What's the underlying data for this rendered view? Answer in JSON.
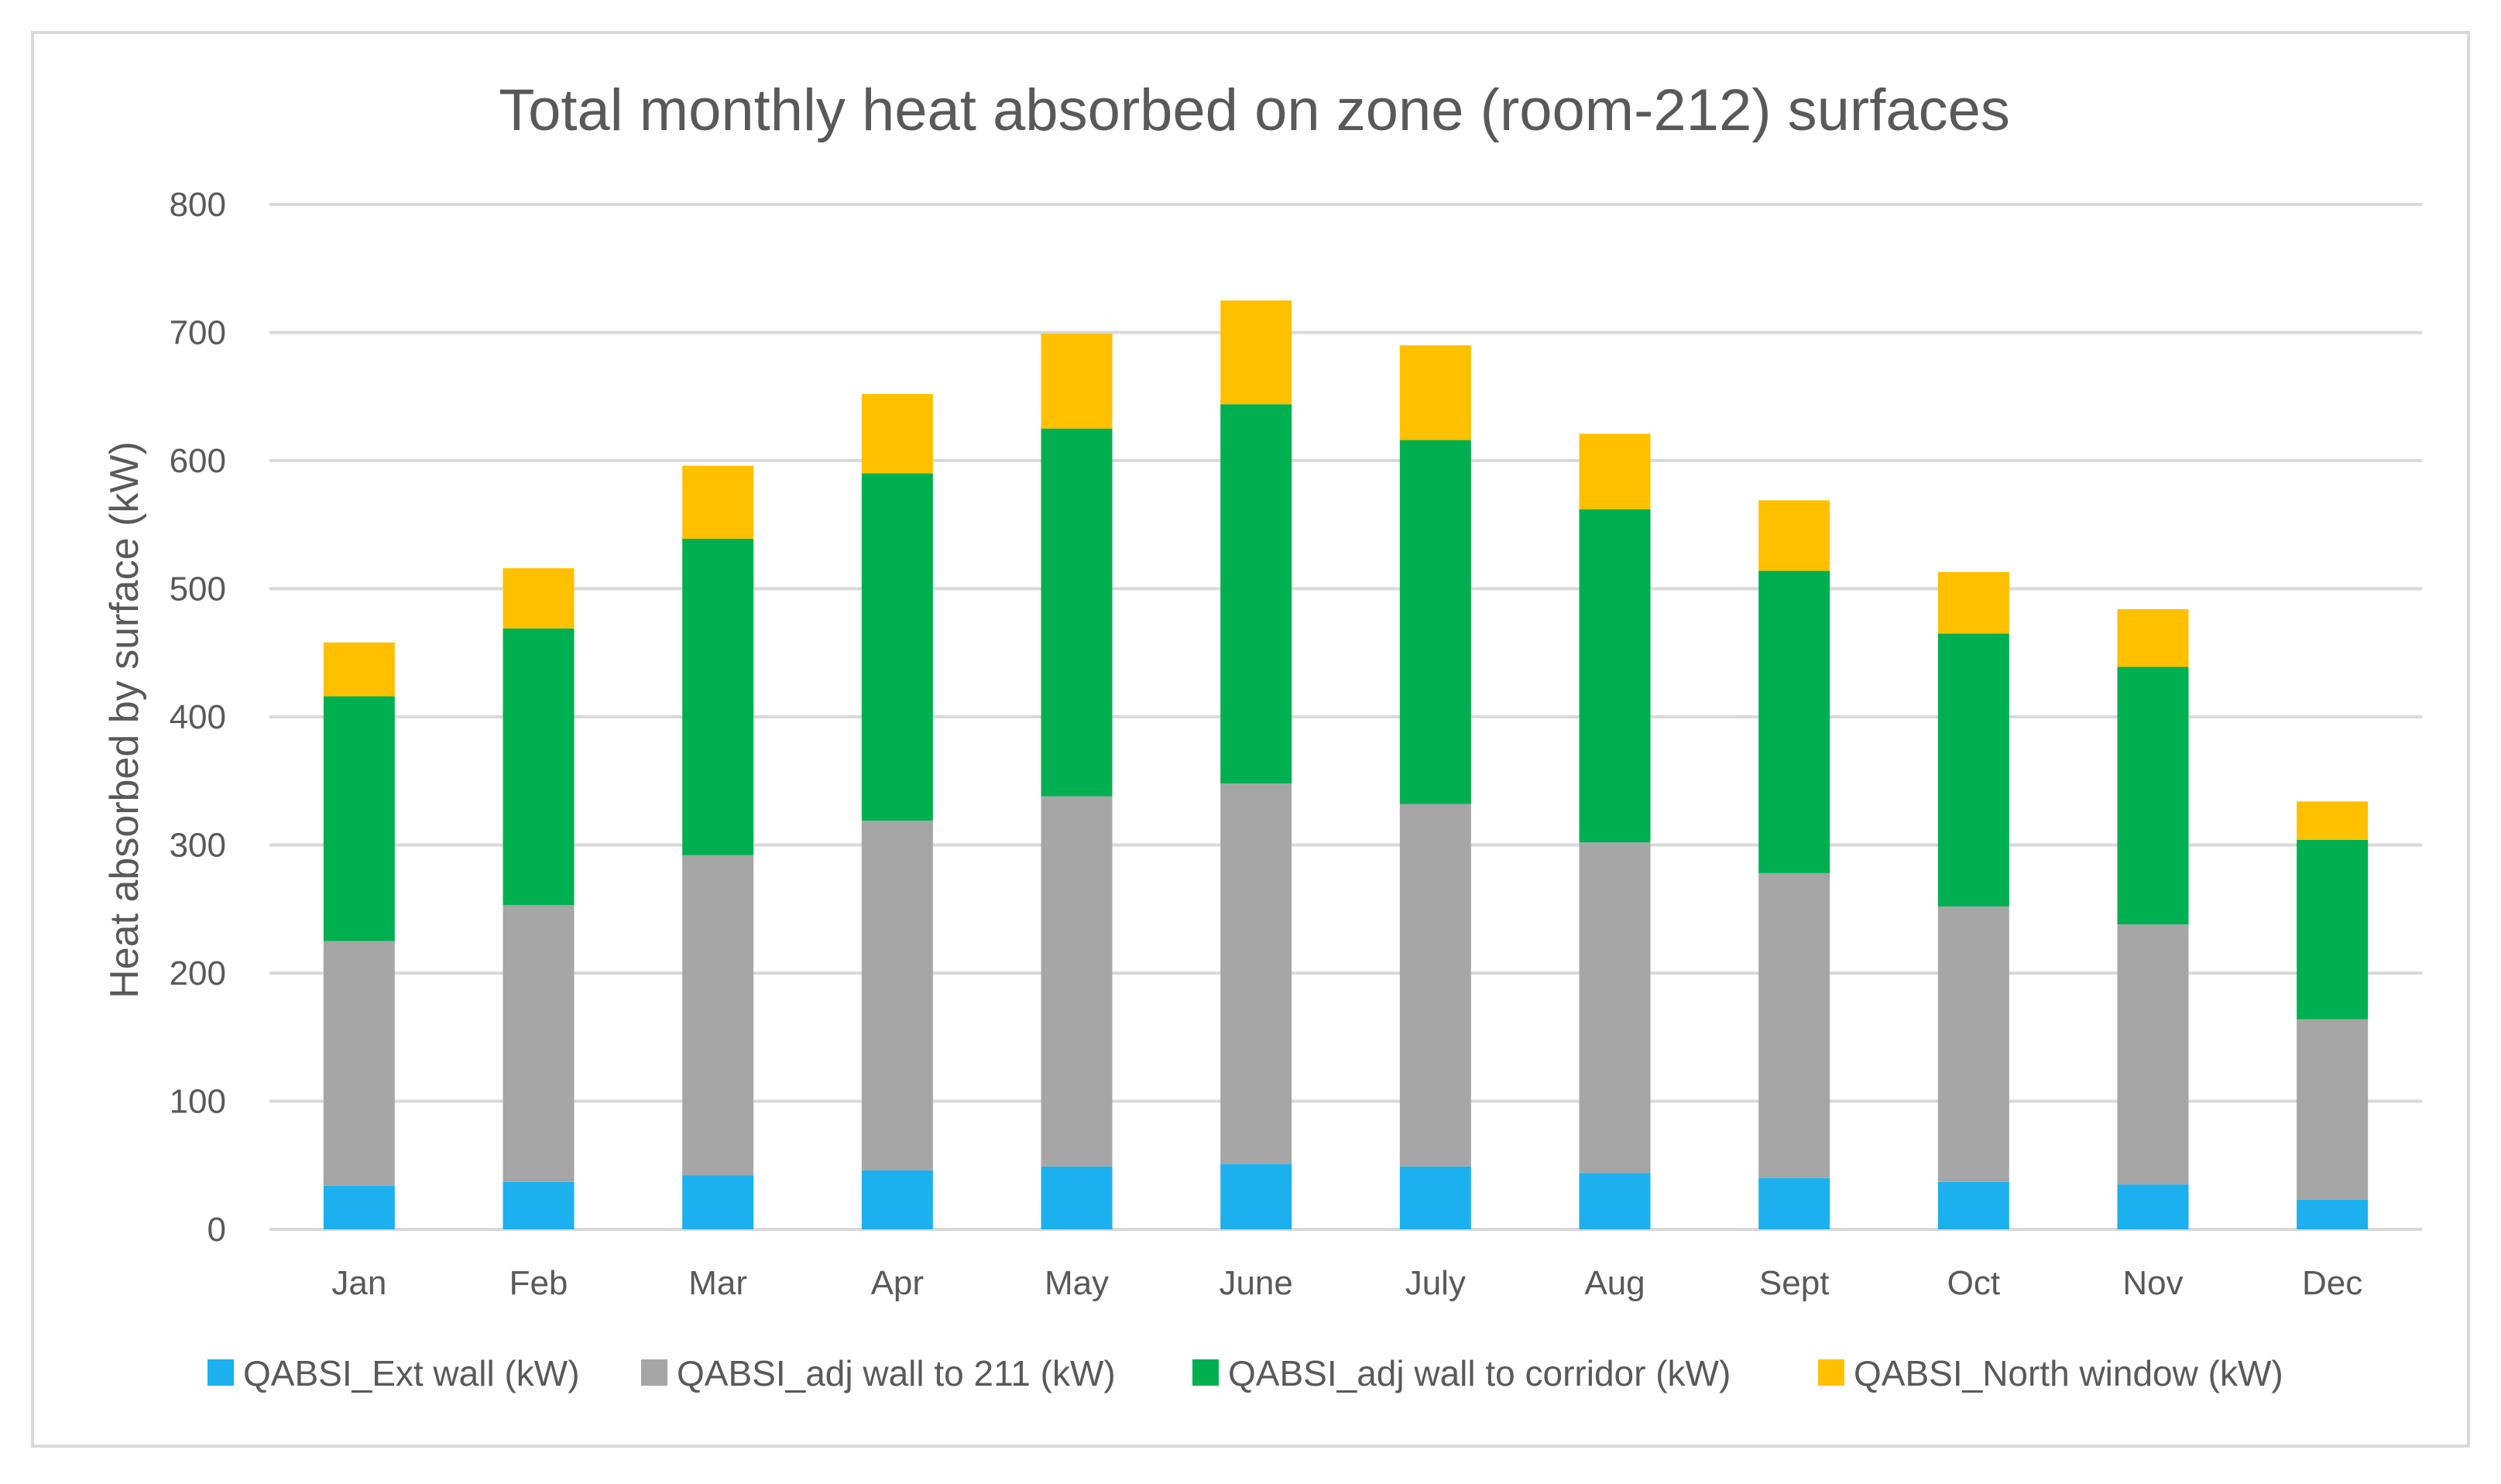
{
  "chart_data": {
    "type": "bar",
    "stacked": true,
    "title": "Total monthly heat absorbed on zone (room-212) surfaces",
    "xlabel": "",
    "ylabel": "Heat absorbed by surface (kW)",
    "ylim": [
      0,
      800
    ],
    "yticks": [
      0,
      100,
      200,
      300,
      400,
      500,
      600,
      700,
      800
    ],
    "grid": true,
    "legend_position": "bottom",
    "categories": [
      "Jan",
      "Feb",
      "Mar",
      "Apr",
      "May",
      "June",
      "July",
      "Aug",
      "Sept",
      "Oct",
      "Nov",
      "Dec"
    ],
    "series": [
      {
        "name": "QABSI_Ext wall (kW)",
        "color": "#1cb0ee",
        "values": [
          34,
          37,
          42,
          46,
          49,
          51,
          49,
          44,
          40,
          37,
          35,
          23
        ]
      },
      {
        "name": "QABSI_adj wall to 211 (kW)",
        "color": "#a6a6a6",
        "values": [
          191,
          216,
          250,
          273,
          289,
          297,
          283,
          258,
          238,
          215,
          203,
          141
        ]
      },
      {
        "name": "QABSI_adj wall to corridor (kW)",
        "color": "#00b050",
        "values": [
          191,
          216,
          247,
          271,
          287,
          296,
          284,
          260,
          236,
          213,
          201,
          140
        ]
      },
      {
        "name": "QABSI_North window (kW)",
        "color": "#ffc000",
        "values": [
          42,
          47,
          57,
          62,
          74,
          81,
          74,
          59,
          55,
          48,
          45,
          30
        ]
      }
    ]
  }
}
